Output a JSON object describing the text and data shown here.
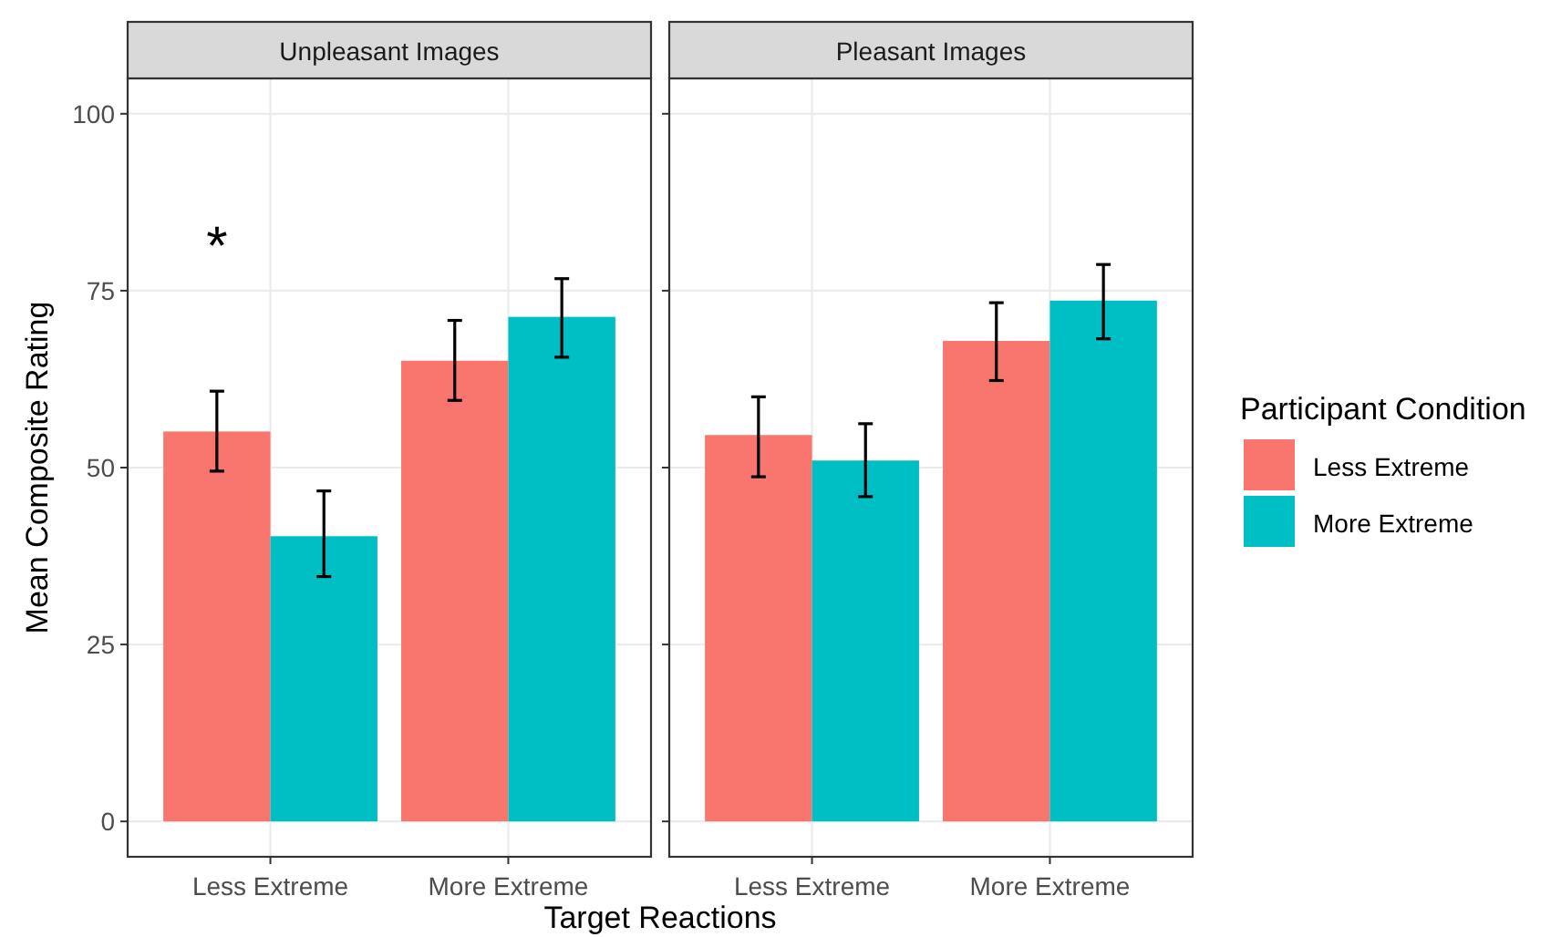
{
  "chart_data": [
    {
      "type": "bar",
      "title": "Unpleasant Images",
      "xlabel": "Target Reactions",
      "ylabel": "Mean Composite Rating",
      "categories": [
        "Less Extreme",
        "More Extreme"
      ],
      "ylim": [
        -5,
        105
      ],
      "yticks": [
        0,
        25,
        50,
        75,
        100
      ],
      "grid": true,
      "legend": false,
      "annotations": [
        "*"
      ],
      "series": [
        {
          "color": "#f8766d",
          "values": [
            55.1,
            65.1
          ],
          "errors": [
            [
              49.5,
              60.8
            ],
            [
              59.5,
              70.8
            ]
          ]
        },
        {
          "color": "#00bfc4",
          "values": [
            40.3,
            71.3
          ],
          "errors": [
            [
              34.6,
              46.7
            ],
            [
              65.6,
              76.7
            ]
          ]
        }
      ]
    },
    {
      "type": "bar",
      "title": "Pleasant Images",
      "categories": [
        "Less Extreme",
        "More Extreme"
      ],
      "ylim": [
        -5,
        105
      ],
      "yticks": [
        0,
        25,
        50,
        75,
        100
      ],
      "grid": true,
      "tick_labels": "x",
      "legend": "right",
      "legend_title": "Participant Condition",
      "series": [
        {
          "name": "Less Extreme",
          "color": "#f8766d",
          "values": [
            54.6,
            67.9
          ],
          "errors": [
            [
              48.7,
              60
            ],
            [
              62.3,
              73.3
            ]
          ]
        },
        {
          "name": "More Extreme",
          "color": "#00bfc4",
          "values": [
            51,
            73.6
          ],
          "errors": [
            [
              45.9,
              56.2
            ],
            [
              68.2,
              78.7
            ]
          ]
        }
      ]
    }
  ]
}
